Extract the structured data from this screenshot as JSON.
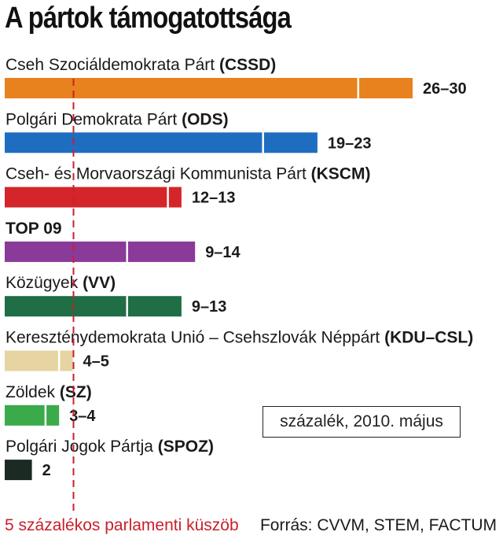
{
  "title": "A pártok támogatottsága",
  "unit_note": "százalék, 2010. május",
  "threshold_note": "5 százalékos parlamenti küszöb",
  "source": "Forrás: CVVM, STEM, FACTUM",
  "chart_data": {
    "type": "bar",
    "orientation": "horizontal",
    "bar_style": "range",
    "categories": [
      "Cseh Szociáldemokrata Párt (CSSD)",
      "Polgári Demokrata Párt (ODS)",
      "Cseh- és Morvaországi Kommunista Párt (KSCM)",
      "TOP 09",
      "Közügyek (VV)",
      "Kereszténydemokrata Unió – Csehszlovák Néppárt (KDU–CSL)",
      "Zöldek (SZ)",
      "Polgári Jogok Pártja (SPOZ)"
    ],
    "bars": [
      {
        "name": "Cseh Szociáldemokrata Párt ",
        "abbr": "(CSSD)",
        "low": 26,
        "high": 30,
        "value_label": "26–30",
        "color": "#e8821e"
      },
      {
        "name": "Polgári Demokrata Párt ",
        "abbr": "(ODS)",
        "low": 19,
        "high": 23,
        "value_label": "19–23",
        "color": "#1f6dc1"
      },
      {
        "name": "Cseh- és Morvaországi Kommunista Párt ",
        "abbr": "(KSCM)",
        "low": 12,
        "high": 13,
        "value_label": "12–13",
        "color": "#d4262a"
      },
      {
        "name": "",
        "abbr": "TOP 09",
        "low": 9,
        "high": 14,
        "value_label": "9–14",
        "color": "#8a3a99"
      },
      {
        "name": "Közügyek ",
        "abbr": "(VV)",
        "low": 9,
        "high": 13,
        "value_label": "9–13",
        "color": "#1f6e45"
      },
      {
        "name": "Kereszténydemokrata Unió – Csehszlovák Néppárt ",
        "abbr": "(KDU–CSL)",
        "low": 4,
        "high": 5,
        "value_label": "4–5",
        "color": "#e6d4a2"
      },
      {
        "name": "Zöldek ",
        "abbr": "(SZ)",
        "low": 3,
        "high": 4,
        "value_label": "3–4",
        "color": "#3aaa4a"
      },
      {
        "name": "Polgári Jogok Pártja ",
        "abbr": "(SPOZ)",
        "low": 2,
        "high": 2,
        "value_label": "2",
        "color": "#1c2a24"
      }
    ],
    "threshold": {
      "value": 5,
      "color": "#c8202a",
      "style": "dashed"
    },
    "xlim": [
      0,
      30
    ],
    "grid": false,
    "legend": "none"
  }
}
